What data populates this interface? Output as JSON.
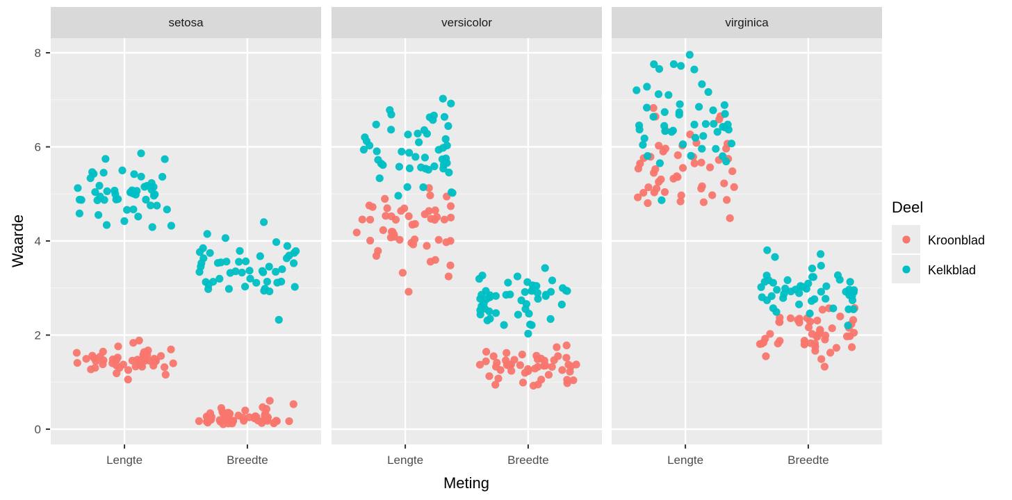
{
  "chart_data": {
    "type": "scatter",
    "subtype": "faceted jitter plot",
    "title": "",
    "xlabel": "Meting",
    "ylabel": "Waarde",
    "ylim": [
      -0.3,
      8.5
    ],
    "y_ticks": [
      0,
      2,
      4,
      6,
      8
    ],
    "y_tick_labels": [
      "0",
      "2",
      "4",
      "6",
      "8"
    ],
    "grid": true,
    "categories": [
      "Lengte",
      "Breedte"
    ],
    "facets": [
      "setosa",
      "versicolor",
      "virginica"
    ],
    "legend": {
      "title": "Deel",
      "position": "right",
      "entries": [
        {
          "name": "Kroonblad",
          "color": "#F8766D"
        },
        {
          "name": "Kelkblad",
          "color": "#00BFC4"
        }
      ]
    },
    "series": [
      {
        "facet": "setosa",
        "name": "Kelkblad",
        "color": "#00BFC4",
        "Lengte": [
          5.1,
          4.9,
          4.7,
          4.6,
          5.0,
          5.4,
          4.6,
          5.0,
          4.4,
          4.9,
          5.4,
          4.8,
          4.8,
          4.3,
          5.8,
          5.7,
          5.4,
          5.1,
          5.7,
          5.1,
          5.4,
          5.1,
          4.6,
          5.1,
          4.8,
          5.0,
          5.0,
          5.2,
          5.2,
          4.7,
          4.8,
          5.4,
          5.2,
          5.5,
          4.9,
          5.0,
          5.5,
          4.9,
          4.4,
          5.1,
          5.0,
          4.5,
          4.4,
          5.0,
          5.1,
          4.8,
          5.1,
          4.6,
          5.3,
          5.0
        ],
        "Breedte": [
          3.5,
          3.0,
          3.2,
          3.1,
          3.6,
          3.9,
          3.4,
          3.4,
          2.9,
          3.1,
          3.7,
          3.4,
          3.0,
          3.0,
          4.0,
          4.4,
          3.9,
          3.5,
          3.8,
          3.8,
          3.4,
          3.7,
          3.6,
          3.3,
          3.4,
          3.0,
          3.4,
          3.5,
          3.4,
          3.2,
          3.1,
          3.4,
          4.1,
          4.2,
          3.1,
          3.2,
          3.5,
          3.6,
          3.0,
          3.4,
          3.5,
          2.3,
          3.2,
          3.5,
          3.8,
          3.0,
          3.8,
          3.2,
          3.7,
          3.3
        ]
      },
      {
        "facet": "setosa",
        "name": "Kroonblad",
        "color": "#F8766D",
        "Lengte": [
          1.4,
          1.4,
          1.3,
          1.5,
          1.4,
          1.7,
          1.4,
          1.5,
          1.4,
          1.5,
          1.5,
          1.6,
          1.4,
          1.1,
          1.2,
          1.5,
          1.3,
          1.4,
          1.7,
          1.5,
          1.7,
          1.5,
          1.0,
          1.7,
          1.9,
          1.6,
          1.6,
          1.5,
          1.4,
          1.6,
          1.6,
          1.5,
          1.5,
          1.4,
          1.5,
          1.2,
          1.3,
          1.4,
          1.3,
          1.5,
          1.3,
          1.3,
          1.3,
          1.6,
          1.9,
          1.4,
          1.6,
          1.4,
          1.5,
          1.4
        ],
        "Breedte": [
          0.2,
          0.2,
          0.2,
          0.2,
          0.2,
          0.4,
          0.3,
          0.2,
          0.2,
          0.1,
          0.2,
          0.2,
          0.1,
          0.1,
          0.2,
          0.4,
          0.4,
          0.3,
          0.3,
          0.3,
          0.2,
          0.4,
          0.2,
          0.5,
          0.2,
          0.2,
          0.4,
          0.2,
          0.2,
          0.2,
          0.2,
          0.4,
          0.1,
          0.2,
          0.2,
          0.2,
          0.2,
          0.1,
          0.2,
          0.2,
          0.3,
          0.3,
          0.2,
          0.6,
          0.4,
          0.3,
          0.2,
          0.2,
          0.2,
          0.2
        ]
      },
      {
        "facet": "versicolor",
        "name": "Kelkblad",
        "color": "#00BFC4",
        "Lengte": [
          7.0,
          6.4,
          6.9,
          5.5,
          6.5,
          5.7,
          6.3,
          4.9,
          6.6,
          5.2,
          5.0,
          5.9,
          6.0,
          6.1,
          5.6,
          6.7,
          5.6,
          5.8,
          6.2,
          5.6,
          5.9,
          6.1,
          6.3,
          6.1,
          6.4,
          6.6,
          6.8,
          6.7,
          6.0,
          5.7,
          5.5,
          5.5,
          5.8,
          6.0,
          5.4,
          6.0,
          6.7,
          6.3,
          5.6,
          5.5,
          5.5,
          6.1,
          5.8,
          5.0,
          5.6,
          5.7,
          5.7,
          6.2,
          5.1,
          5.7
        ],
        "Breedte": [
          3.2,
          3.2,
          3.1,
          2.3,
          2.8,
          2.8,
          3.3,
          2.4,
          2.9,
          2.7,
          2.0,
          3.0,
          2.2,
          2.9,
          2.9,
          3.1,
          3.0,
          2.7,
          2.2,
          2.5,
          3.2,
          2.8,
          2.5,
          2.8,
          2.9,
          3.0,
          2.8,
          3.0,
          2.9,
          2.6,
          2.4,
          2.4,
          2.7,
          2.7,
          3.0,
          3.4,
          3.1,
          2.3,
          3.0,
          2.5,
          2.6,
          3.0,
          2.6,
          2.3,
          2.7,
          3.0,
          2.9,
          2.9,
          2.5,
          2.8
        ]
      },
      {
        "facet": "versicolor",
        "name": "Kroonblad",
        "color": "#F8766D",
        "Lengte": [
          4.7,
          4.5,
          4.9,
          4.0,
          4.6,
          4.5,
          4.7,
          3.3,
          4.6,
          3.9,
          3.5,
          4.2,
          4.0,
          4.7,
          3.6,
          4.4,
          4.5,
          4.1,
          4.5,
          3.9,
          4.8,
          4.0,
          4.9,
          4.7,
          4.3,
          4.4,
          4.8,
          5.0,
          4.5,
          3.5,
          3.8,
          3.7,
          3.9,
          5.1,
          4.5,
          4.5,
          4.7,
          4.4,
          4.1,
          4.0,
          4.4,
          4.6,
          4.0,
          3.3,
          4.2,
          4.2,
          4.2,
          4.3,
          3.0,
          4.1
        ],
        "Breedte": [
          1.4,
          1.5,
          1.5,
          1.3,
          1.5,
          1.3,
          1.6,
          1.0,
          1.3,
          1.4,
          1.0,
          1.5,
          1.0,
          1.4,
          1.3,
          1.4,
          1.5,
          1.0,
          1.5,
          1.1,
          1.8,
          1.3,
          1.5,
          1.2,
          1.3,
          1.4,
          1.4,
          1.7,
          1.5,
          1.0,
          1.1,
          1.0,
          1.2,
          1.6,
          1.5,
          1.6,
          1.5,
          1.3,
          1.3,
          1.3,
          1.2,
          1.4,
          1.2,
          1.0,
          1.3,
          1.2,
          1.3,
          1.3,
          1.1,
          1.3
        ]
      },
      {
        "facet": "virginica",
        "name": "Kelkblad",
        "color": "#00BFC4",
        "Lengte": [
          6.3,
          5.8,
          7.1,
          6.3,
          6.5,
          7.6,
          4.9,
          7.3,
          6.7,
          7.2,
          6.5,
          6.4,
          6.8,
          5.7,
          5.8,
          6.4,
          6.5,
          7.7,
          7.7,
          6.0,
          6.9,
          5.6,
          7.7,
          6.3,
          6.7,
          7.2,
          6.2,
          6.1,
          6.4,
          7.2,
          7.4,
          7.9,
          6.4,
          6.3,
          6.1,
          7.7,
          6.3,
          6.4,
          6.0,
          6.9,
          6.7,
          6.9,
          5.8,
          6.8,
          6.7,
          6.7,
          6.3,
          6.5,
          6.2,
          5.9
        ],
        "Breedte": [
          3.3,
          2.7,
          3.0,
          2.9,
          3.0,
          3.0,
          2.5,
          2.9,
          2.5,
          3.6,
          3.2,
          2.7,
          3.0,
          2.5,
          2.8,
          3.2,
          3.0,
          3.8,
          2.6,
          2.2,
          3.2,
          2.8,
          2.8,
          2.7,
          3.3,
          3.2,
          2.8,
          3.0,
          2.8,
          3.0,
          2.8,
          3.8,
          2.8,
          2.8,
          2.6,
          3.0,
          3.4,
          3.1,
          3.0,
          3.1,
          3.1,
          3.1,
          2.7,
          3.2,
          3.3,
          3.0,
          2.5,
          3.0,
          3.4,
          3.0
        ]
      },
      {
        "facet": "virginica",
        "name": "Kroonblad",
        "color": "#F8766D",
        "Lengte": [
          6.0,
          5.1,
          5.9,
          5.6,
          5.8,
          6.6,
          4.5,
          6.3,
          5.8,
          6.1,
          5.1,
          5.3,
          5.5,
          5.0,
          5.1,
          5.3,
          5.5,
          6.7,
          6.9,
          5.0,
          5.7,
          4.9,
          6.7,
          4.9,
          5.7,
          6.0,
          4.8,
          4.9,
          5.6,
          5.8,
          6.1,
          6.4,
          5.6,
          5.1,
          5.6,
          6.1,
          5.6,
          5.5,
          4.8,
          5.4,
          5.6,
          5.1,
          5.1,
          5.9,
          5.7,
          5.2,
          5.0,
          5.2,
          5.4,
          5.1
        ],
        "Breedte": [
          2.5,
          1.9,
          2.1,
          1.8,
          2.2,
          2.1,
          1.7,
          1.8,
          1.8,
          2.5,
          2.0,
          1.9,
          2.1,
          2.0,
          2.4,
          2.3,
          1.8,
          2.2,
          2.3,
          1.5,
          2.3,
          2.0,
          2.0,
          1.8,
          2.1,
          1.8,
          1.8,
          1.8,
          2.1,
          1.6,
          1.9,
          2.0,
          2.2,
          1.5,
          1.4,
          2.3,
          2.4,
          1.8,
          1.8,
          2.1,
          2.4,
          2.3,
          1.9,
          2.3,
          2.5,
          2.3,
          1.9,
          2.0,
          2.3,
          1.8
        ]
      }
    ]
  }
}
